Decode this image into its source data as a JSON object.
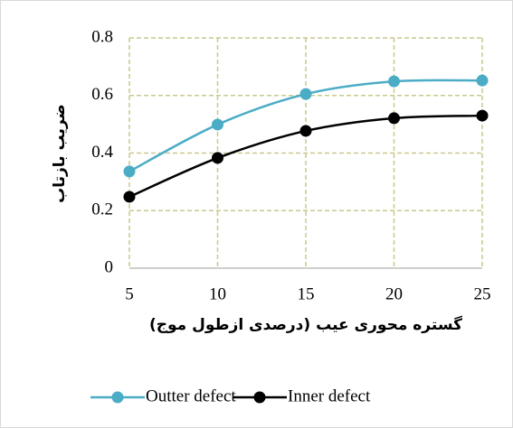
{
  "chart_data": {
    "type": "line",
    "x_label": "گستره محوری عیب (درصدی ازطول موج)",
    "y_label": "ضریب بازتاب",
    "x": [
      5,
      10,
      15,
      20,
      25
    ],
    "series": [
      {
        "name": "Outter defect",
        "color": "#4bacc6",
        "values": [
          0.336,
          0.499,
          0.605,
          0.649,
          0.652
        ]
      },
      {
        "name": "Inner defect",
        "color": "#000000",
        "values": [
          0.248,
          0.383,
          0.477,
          0.521,
          0.53
        ]
      }
    ],
    "xlim": [
      5,
      25
    ],
    "xticks": [
      5,
      10,
      15,
      20,
      25
    ],
    "ylim": [
      0,
      0.8
    ],
    "yticks": [
      0,
      0.2,
      0.4,
      0.6,
      0.8
    ],
    "grid": true,
    "legend": "bottom",
    "smooth": true
  }
}
